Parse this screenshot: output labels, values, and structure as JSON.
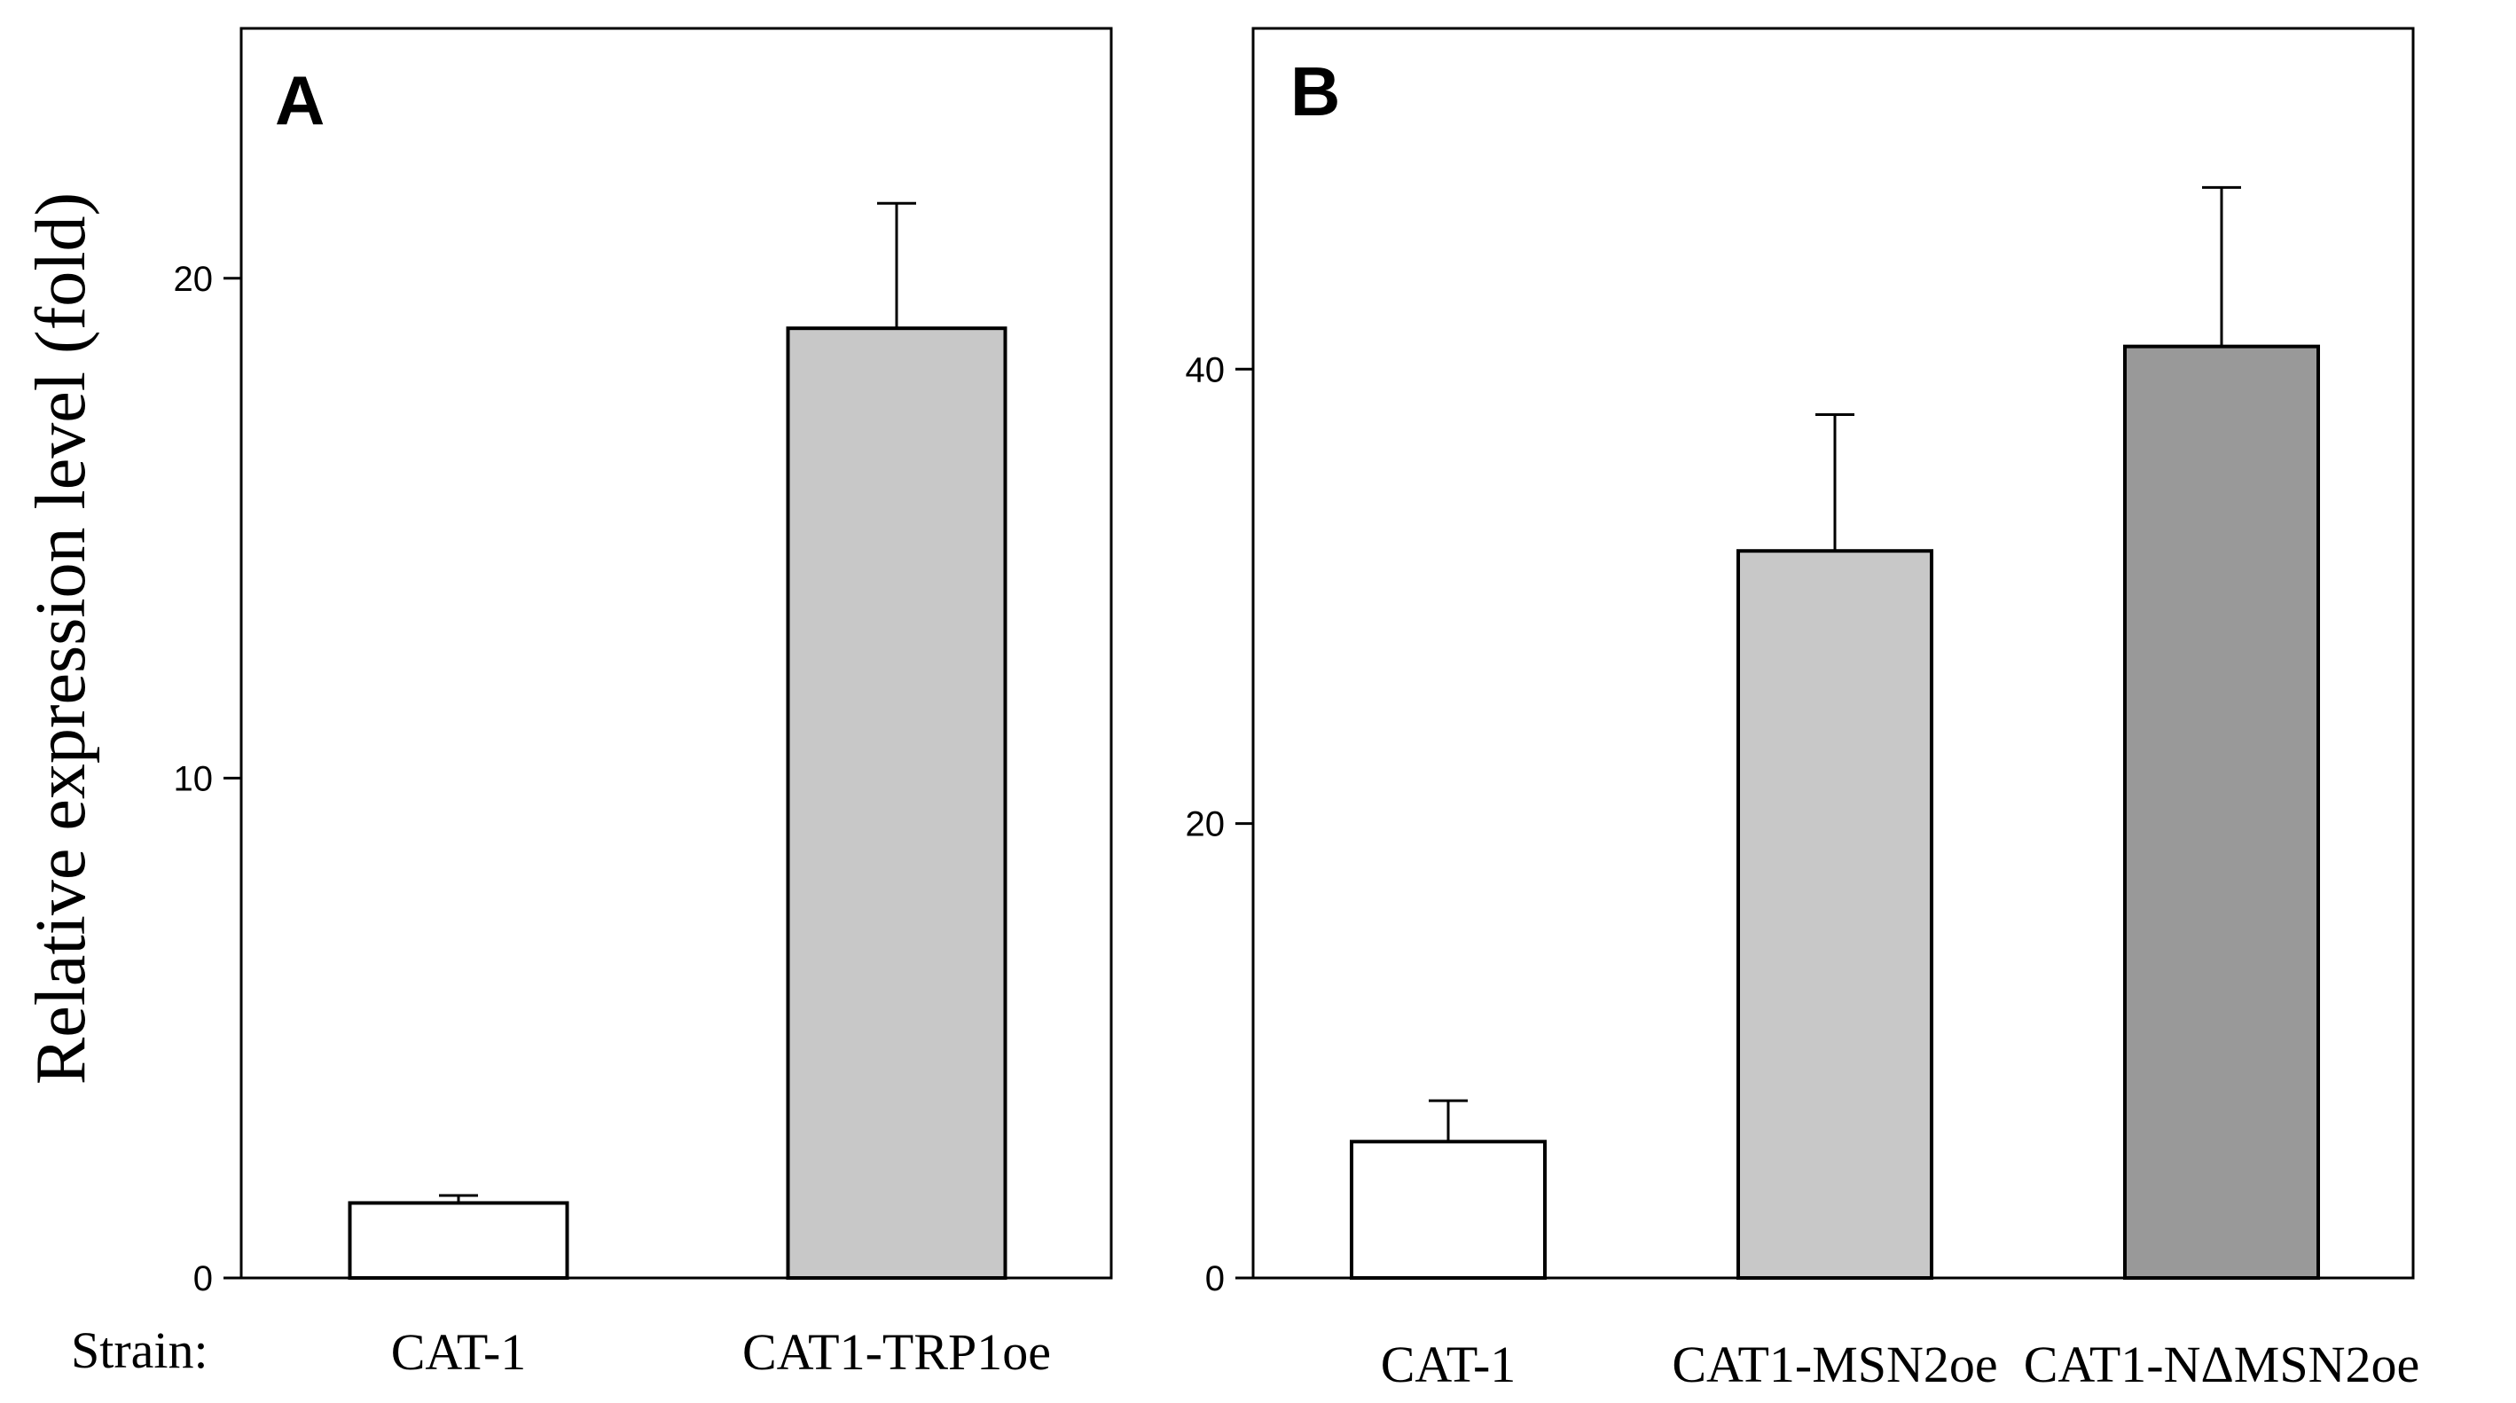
{
  "chart_data": [
    {
      "type": "bar",
      "panel_label": "A",
      "categories": [
        "CAT-1",
        "CAT1-TRP1oe"
      ],
      "values": [
        1.5,
        19.0
      ],
      "errors": [
        0.15,
        2.5
      ],
      "colors": [
        "#ffffff",
        "#c8c8c8"
      ],
      "ylabel": "Relative expression level (fold)",
      "ylim": [
        0,
        25
      ],
      "yticks": [
        0,
        10,
        20
      ],
      "xlabel": "",
      "axis_prefix": "Strain:"
    },
    {
      "type": "bar",
      "panel_label": "B",
      "categories": [
        "CAT-1",
        "CAT1-MSN2oe",
        "CAT1-NΔMSN2oe"
      ],
      "values": [
        6.0,
        32.0,
        41.0
      ],
      "errors": [
        1.8,
        6.0,
        7.0
      ],
      "colors": [
        "#ffffff",
        "#c8c8c8",
        "#999999"
      ],
      "ylabel": "",
      "ylim": [
        0,
        55
      ],
      "yticks": [
        0,
        20,
        40
      ],
      "xlabel": ""
    }
  ]
}
